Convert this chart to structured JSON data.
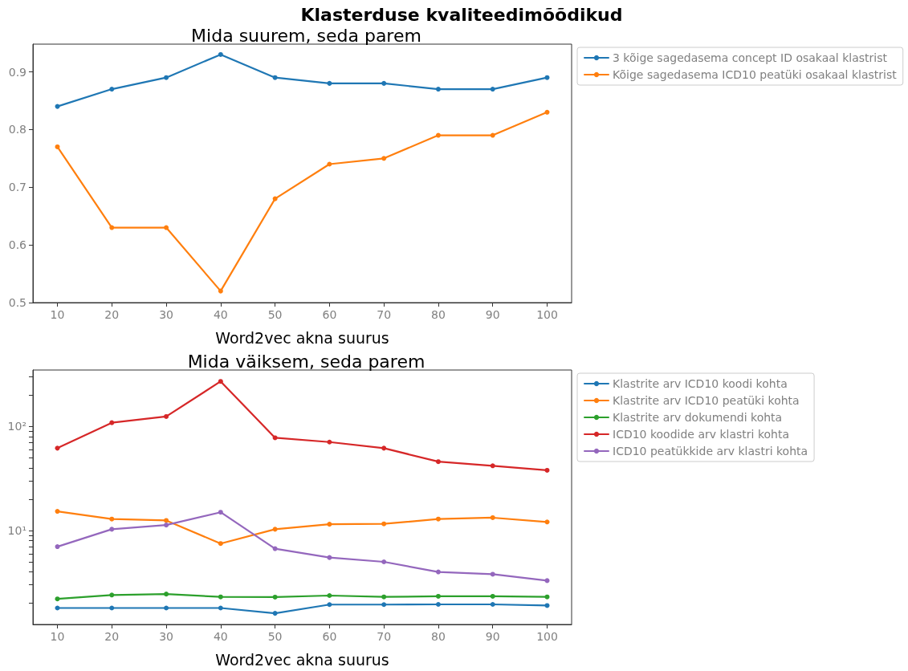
{
  "chart_data": [
    {
      "type": "line",
      "title": "Klasterduse kvaliteedimõõdikud",
      "subtitle": "Mida suurem, seda parem",
      "xlabel": "Word2vec akna suurus",
      "x": [
        10,
        20,
        30,
        40,
        50,
        60,
        70,
        80,
        90,
        100
      ],
      "series": [
        {
          "name": "3 kõige sagedasema concept ID osakaal klastrist",
          "color": "#1f77b4",
          "values": [
            0.84,
            0.87,
            0.89,
            0.93,
            0.89,
            0.88,
            0.88,
            0.87,
            0.87,
            0.89
          ]
        },
        {
          "name": "Kõige sagedasema ICD10 peatüki osakaal klastrist",
          "color": "#ff7f0e",
          "values": [
            0.77,
            0.63,
            0.63,
            0.52,
            0.68,
            0.74,
            0.75,
            0.79,
            0.79,
            0.83
          ]
        }
      ],
      "xlim": [
        5.5,
        104.5
      ],
      "xticks": [
        10,
        20,
        30,
        40,
        50,
        60,
        70,
        80,
        90,
        100
      ],
      "ylim": [
        0.5,
        0.948
      ],
      "yticks": [
        0.5,
        0.6,
        0.7,
        0.8,
        0.9
      ],
      "grid": false,
      "legend": "top right",
      "marker": "circle",
      "line_style": "solid"
    },
    {
      "type": "line",
      "title": "Mida väiksem, seda parem",
      "xlabel": "Word2vec akna suurus",
      "x": [
        10,
        20,
        30,
        40,
        50,
        60,
        70,
        80,
        90,
        100
      ],
      "series": [
        {
          "name": "Klastrite arv ICD10 koodi kohta",
          "color": "#1f77b4",
          "values": [
            1.8,
            1.8,
            1.8,
            1.8,
            1.6,
            1.94,
            1.94,
            1.95,
            1.95,
            1.9
          ]
        },
        {
          "name": "Klastrite arv ICD10 peatüki kohta",
          "color": "#ff7f0e",
          "values": [
            15.3,
            12.9,
            12.5,
            7.5,
            10.3,
            11.5,
            11.6,
            12.9,
            13.3,
            12.1
          ]
        },
        {
          "name": "Klastrite arv dokumendi kohta",
          "color": "#2ca02c",
          "values": [
            2.2,
            2.4,
            2.45,
            2.3,
            2.29,
            2.37,
            2.3,
            2.33,
            2.33,
            2.3
          ]
        },
        {
          "name": "ICD10 koodide arv klastri kohta",
          "color": "#d62728",
          "values": [
            62,
            109,
            125,
            272,
            78,
            71,
            62,
            46,
            42,
            38
          ]
        },
        {
          "name": "ICD10 peatükkide arv klastri kohta",
          "color": "#9467bd",
          "values": [
            7.0,
            10.3,
            11.3,
            15,
            6.7,
            5.5,
            5.0,
            4.0,
            3.8,
            3.3
          ]
        }
      ],
      "xlim": [
        5.5,
        104.5
      ],
      "xticks": [
        10,
        20,
        30,
        40,
        50,
        60,
        70,
        80,
        90,
        100
      ],
      "ylim": [
        1.25,
        350
      ],
      "log": "y",
      "yticks": [
        {
          "value": 2,
          "label": null
        },
        {
          "value": 3,
          "label": null
        },
        {
          "value": 4,
          "label": null
        },
        {
          "value": 5,
          "label": null
        },
        {
          "value": 6,
          "label": null
        },
        {
          "value": 7,
          "label": null
        },
        {
          "value": 8,
          "label": null
        },
        {
          "value": 9,
          "label": null
        },
        {
          "value": 10,
          "label": "10¹"
        },
        {
          "value": 20,
          "label": null
        },
        {
          "value": 30,
          "label": null
        },
        {
          "value": 40,
          "label": null
        },
        {
          "value": 50,
          "label": null
        },
        {
          "value": 60,
          "label": null
        },
        {
          "value": 70,
          "label": null
        },
        {
          "value": 80,
          "label": null
        },
        {
          "value": 90,
          "label": null
        },
        {
          "value": 100,
          "label": "10²"
        },
        {
          "value": 200,
          "label": null
        },
        {
          "value": 300,
          "label": null
        }
      ],
      "grid": false,
      "legend": "top right",
      "marker": "circle",
      "line_style": "solid"
    }
  ]
}
